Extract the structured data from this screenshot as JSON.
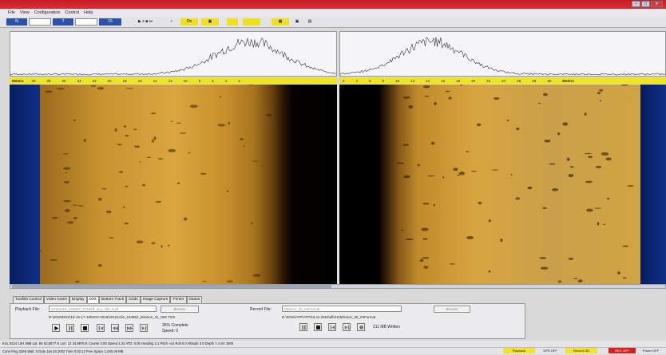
{
  "menu": [
    "File",
    "View",
    "Configuration",
    "Control",
    "Help"
  ],
  "toolbar": {
    "channel_a": "N",
    "channel_b": "T",
    "value_c": "15",
    "playback_glyphs": "▶ ⏸ ■ ⏭",
    "check": "✓",
    "yellow_a": "On",
    "yellow_b": "▣",
    "yellow_c": "▦"
  },
  "ruler_left": {
    "label": "Meters",
    "ticks": [
      "30",
      "28",
      "26",
      "24",
      "22",
      "20",
      "18",
      "16",
      "14",
      "12",
      "10",
      "8",
      "6",
      "4",
      "2"
    ]
  },
  "ruler_right": {
    "ticks": [
      "2",
      "4",
      "6",
      "8",
      "10",
      "12",
      "14",
      "16",
      "18",
      "20",
      "22",
      "24",
      "26",
      "28",
      "30"
    ],
    "label": "Meters"
  },
  "tabs": [
    "Towfish Control",
    "Video Gains",
    "Display",
    "Disk",
    "Bottom Track",
    "Grids",
    "Image Capture",
    "Printer",
    "Status"
  ],
  "disk": {
    "playback_label": "Playback File:",
    "playback_value": "20161116_163857_271568_any_nile_5.jsf",
    "browse": "Browse",
    "playback_path": "D:\\2016\\DSS\\15-16-17-18\\NOV-2016\\20161116_163852_Mission_31_002.TGS",
    "progress_text": "36% Complete",
    "speed_text": "Speed: 0",
    "record_label": "Record File:",
    "record_value": "Mission_35_04Format",
    "record_browse": "Browse",
    "record_path": "D:\\2016\\ATP\\ATP\\16.11.2016\\all\\SS\\Mission_35_04Format",
    "written_text": "211 MB Written"
  },
  "status_line1": "KSL 9224 12H 39M  Lat: 9S 52.8877 N  Lon: 12 34.9876 E  Course 0.00  Speed 2.34  ATD: 0.05  Heading 2.1  Pitch -4.5  Roll 0.0  Altitude 3.0  Depth 7.4  SV 1500",
  "status_line2": "Conn Ping 2366  Wait: 0  Date Jan 25 2002  Time 0:03:13  Free Space 1,040.08 MB",
  "indicators": [
    {
      "label": "Playback",
      "color": "#f3e230"
    },
    {
      "label": "GPS OFF",
      "color": "#e4e4e8"
    },
    {
      "label": "Record ON",
      "color": "#f3e230"
    },
    {
      "label": "REC OFF",
      "color": "#d82020"
    },
    {
      "label": "Power OFF",
      "color": "#e4e4e8"
    }
  ],
  "colors": {
    "accent": "#2b52a8",
    "title": "#c41c22",
    "ruler": "#f0e41c"
  }
}
